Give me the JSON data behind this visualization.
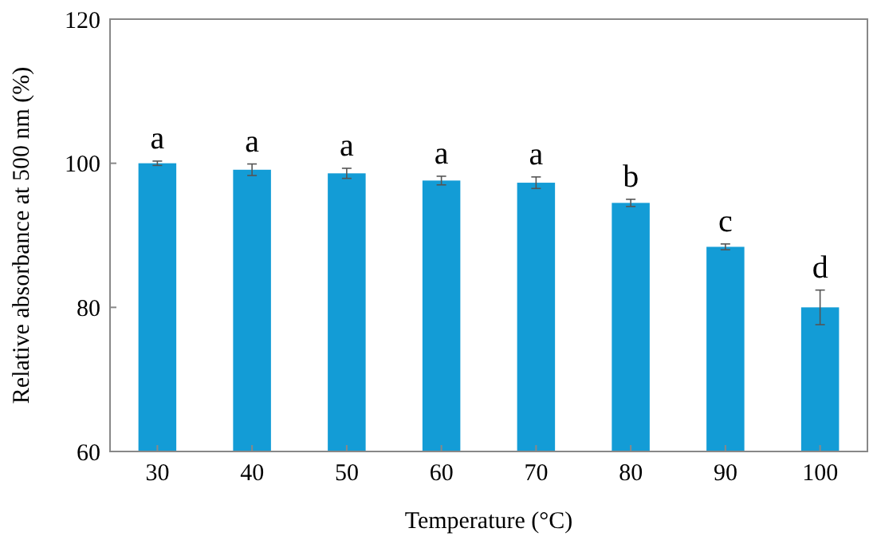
{
  "chart_data": {
    "type": "bar",
    "xlabel": "Temperature (°C)",
    "ylabel": "Relative absorbance at 500 nm (%)",
    "categories": [
      "30",
      "40",
      "50",
      "60",
      "70",
      "80",
      "90",
      "100"
    ],
    "values": [
      100,
      99.1,
      98.6,
      97.6,
      97.3,
      94.5,
      88.4,
      80
    ],
    "errors": [
      0.3,
      0.8,
      0.7,
      0.6,
      0.8,
      0.5,
      0.4,
      2.4
    ],
    "color": "#139cd6",
    "ylim": [
      60,
      120
    ],
    "yticks": [
      60,
      80,
      100,
      120
    ],
    "grid": false,
    "annotations": [
      {
        "text": "a",
        "x": "30",
        "y": 100.3
      },
      {
        "text": "a",
        "x": "40",
        "y": 99.9
      },
      {
        "text": "a",
        "x": "50",
        "y": 99.3
      },
      {
        "text": "a",
        "x": "60",
        "y": 98.2
      },
      {
        "text": "a",
        "x": "70",
        "y": 98.1
      },
      {
        "text": "b",
        "x": "80",
        "y": 95
      },
      {
        "text": "c",
        "x": "90",
        "y": 88.8
      },
      {
        "text": "d",
        "x": "100",
        "y": 82.4
      }
    ]
  }
}
